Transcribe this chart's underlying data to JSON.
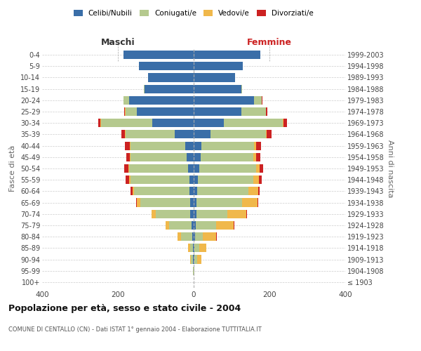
{
  "age_groups": [
    "100+",
    "95-99",
    "90-94",
    "85-89",
    "80-84",
    "75-79",
    "70-74",
    "65-69",
    "60-64",
    "55-59",
    "50-54",
    "45-49",
    "40-44",
    "35-39",
    "30-34",
    "25-29",
    "20-24",
    "15-19",
    "10-14",
    "5-9",
    "0-4"
  ],
  "birth_years": [
    "≤ 1903",
    "1904-1908",
    "1909-1913",
    "1914-1918",
    "1919-1923",
    "1924-1928",
    "1929-1933",
    "1934-1938",
    "1939-1943",
    "1944-1948",
    "1949-1953",
    "1954-1958",
    "1959-1963",
    "1964-1968",
    "1969-1973",
    "1974-1978",
    "1979-1983",
    "1984-1988",
    "1989-1993",
    "1994-1998",
    "1999-2003"
  ],
  "males": {
    "celibi": [
      0,
      0,
      2,
      2,
      4,
      5,
      10,
      10,
      12,
      12,
      15,
      18,
      22,
      50,
      110,
      150,
      170,
      130,
      120,
      145,
      185
    ],
    "coniugati": [
      0,
      1,
      5,
      8,
      30,
      60,
      90,
      130,
      145,
      155,
      155,
      148,
      145,
      130,
      135,
      30,
      15,
      1,
      0,
      0,
      0
    ],
    "vedovi": [
      0,
      0,
      2,
      5,
      8,
      10,
      12,
      10,
      5,
      4,
      3,
      2,
      2,
      1,
      1,
      1,
      0,
      0,
      0,
      0,
      0
    ],
    "divorziati": [
      0,
      0,
      0,
      0,
      0,
      0,
      0,
      2,
      5,
      8,
      10,
      10,
      12,
      10,
      6,
      2,
      0,
      0,
      0,
      0,
      0
    ]
  },
  "females": {
    "nubili": [
      0,
      0,
      2,
      2,
      4,
      5,
      8,
      8,
      10,
      12,
      14,
      18,
      20,
      45,
      80,
      125,
      160,
      125,
      110,
      130,
      175
    ],
    "coniugate": [
      0,
      1,
      8,
      12,
      20,
      55,
      80,
      120,
      135,
      145,
      150,
      140,
      140,
      145,
      155,
      65,
      20,
      2,
      0,
      0,
      0
    ],
    "vedove": [
      0,
      1,
      10,
      20,
      35,
      45,
      50,
      40,
      25,
      15,
      10,
      6,
      5,
      3,
      2,
      1,
      0,
      0,
      0,
      0,
      0
    ],
    "divorziate": [
      0,
      0,
      0,
      0,
      2,
      2,
      3,
      3,
      5,
      8,
      10,
      12,
      12,
      12,
      10,
      4,
      2,
      0,
      0,
      0,
      0
    ]
  },
  "colors": {
    "celibi": "#3a6ea8",
    "coniugati": "#b5c98e",
    "vedovi": "#f0b84b",
    "divorziati": "#cc2222"
  },
  "xlim": 400,
  "title": "Popolazione per età, sesso e stato civile - 2004",
  "subtitle": "COMUNE DI CENTALLO (CN) - Dati ISTAT 1° gennaio 2004 - Elaborazione TUTTITALIA.IT",
  "ylabel_left": "Fasce di età",
  "ylabel_right": "Anni di nascita",
  "xlabel_left": "Maschi",
  "xlabel_right": "Femmine",
  "legend_labels": [
    "Celibi/Nubili",
    "Coniugati/e",
    "Vedovi/e",
    "Divorziati/e"
  ],
  "background_color": "#ffffff",
  "grid_color": "#cccccc"
}
